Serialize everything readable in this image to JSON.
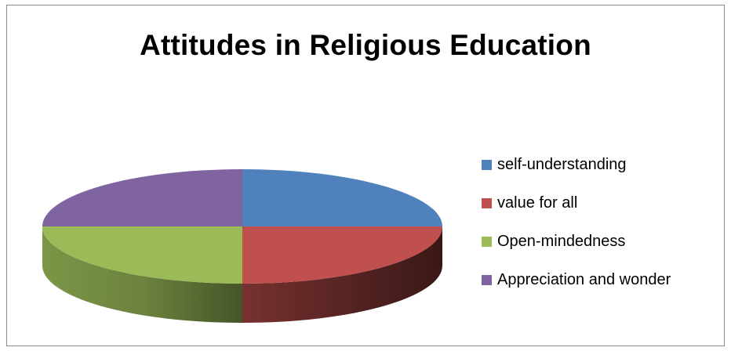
{
  "chart_data": {
    "type": "pie",
    "title": "Attitudes in Religious Education",
    "legend_position": "right",
    "slices": [
      {
        "label": "self-understanding",
        "value": 25,
        "color": "#4f81bd"
      },
      {
        "label": "value for all",
        "value": 25,
        "color": "#c0504d"
      },
      {
        "label": "Open-mindedness",
        "value": 25,
        "color": "#9bbb59"
      },
      {
        "label": "Appreciation and wonder",
        "value": 25,
        "color": "#8064a2"
      }
    ]
  }
}
